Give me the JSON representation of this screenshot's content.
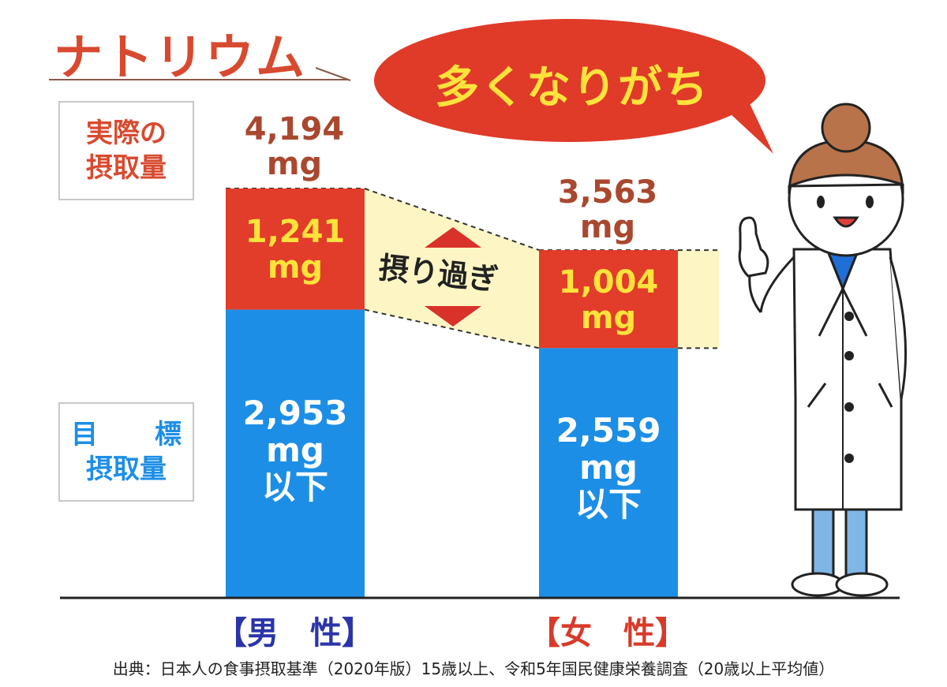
{
  "title": "ナトリウム",
  "speech_bubble": "多くなりがち",
  "label_actual": [
    "実際の",
    "摂取量"
  ],
  "label_target": [
    "目",
    "標",
    "摂取量"
  ],
  "overeat_label": "摂り過ぎ",
  "source": "出典：日本人の食事摂取基準（2020年版）15歳以上、令和5年国民健康栄養調査（20歳以上平均値）",
  "colors": {
    "target": "#1d8ee6",
    "excess": "#e23c2a",
    "band": "#fdf6c4",
    "title": "#d84a2f",
    "male_label": "#2b35a8",
    "female_label": "#d83a2a"
  },
  "chart_data": {
    "type": "bar",
    "stacked": true,
    "categories": [
      "【男　性】",
      "【女　性】"
    ],
    "unit": "mg",
    "series": [
      {
        "name": "目標摂取量",
        "values": [
          2953,
          2559
        ]
      },
      {
        "name": "摂り過ぎ",
        "values": [
          1241,
          1004
        ]
      }
    ],
    "totals": [
      4194,
      3563
    ],
    "labels": {
      "total": [
        {
          "value": "4,194",
          "unit": "mg"
        },
        {
          "value": "3,563",
          "unit": "mg"
        }
      ],
      "excess": [
        {
          "value": "1,241",
          "unit": "mg"
        },
        {
          "value": "1,004",
          "unit": "mg"
        }
      ],
      "target": [
        {
          "value": "2,953",
          "unit": "mg",
          "suffix": "以下"
        },
        {
          "value": "2,559",
          "unit": "mg",
          "suffix": "以下"
        }
      ]
    },
    "ylim": [
      0,
      4194
    ]
  }
}
